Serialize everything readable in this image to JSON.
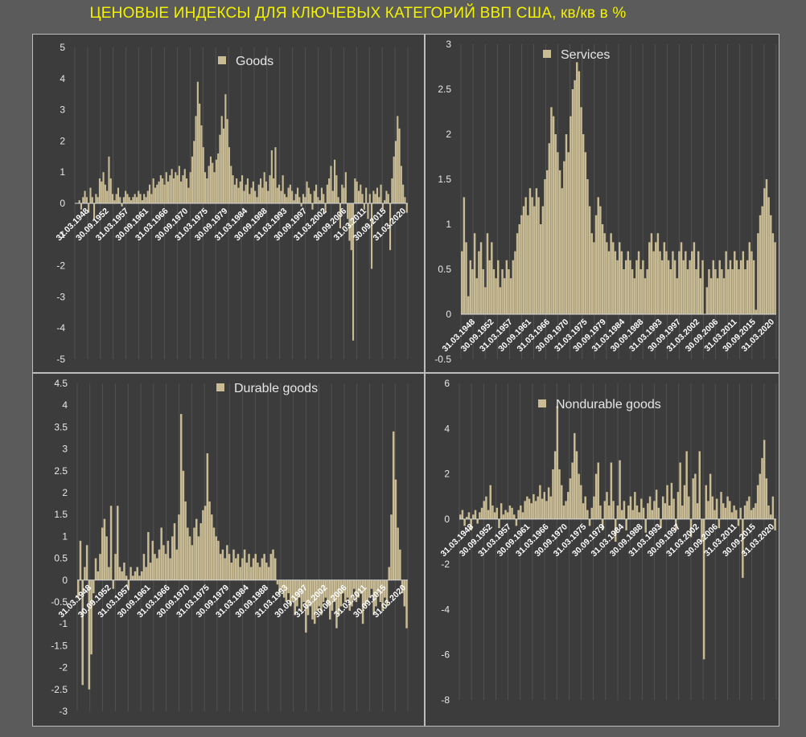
{
  "page_title": "ЦЕНОВЫЕ ИНДЕКСЫ ДЛЯ КЛЮЧЕВЫХ КАТЕГОРИЙ ВВП США, кв/кв в %",
  "colors": {
    "bar": "#c9bc94",
    "axis_text": "#e8e8e8",
    "grid": "#5a5a5a",
    "panel": "#3c3c3c",
    "title": "#f2f200"
  },
  "chart_data": [
    {
      "type": "bar",
      "legend": "Goods",
      "y_ticks": [
        "5",
        "4",
        "3",
        "2",
        "1",
        "0",
        "-1",
        "-2",
        "-3",
        "-4",
        "-5"
      ],
      "ylim": [
        -5,
        5
      ],
      "x_ticks": [
        "31.03.1948",
        "30.09.1952",
        "31.03.1957",
        "30.09.1961",
        "31.03.1966",
        "30.09.1970",
        "31.03.1975",
        "30.09.1979",
        "31.03.1984",
        "30.09.1988",
        "31.03.1993",
        "30.09.1997",
        "31.03.2002",
        "30.09.2006",
        "31.03.2011",
        "30.09.2015",
        "31.03.2020"
      ],
      "values": [
        0,
        0,
        0.1,
        -0.2,
        0.2,
        0.4,
        0.2,
        -0.3,
        0.5,
        0.2,
        -0.5,
        0.3,
        0.2,
        0.8,
        0.7,
        1.0,
        0.6,
        0.4,
        1.5,
        0.8,
        0.3,
        0.1,
        0.3,
        0.5,
        0.2,
        -0.1,
        0.2,
        0.4,
        0.3,
        0.2,
        0.1,
        0.2,
        0.3,
        0.2,
        0.4,
        0.3,
        0.1,
        0.3,
        0.2,
        0.4,
        0.6,
        0.3,
        0.8,
        0.5,
        0.6,
        0.7,
        0.9,
        0.8,
        0.6,
        1.0,
        0.7,
        0.9,
        1.1,
        0.8,
        1.0,
        0.9,
        1.2,
        0.7,
        0.9,
        1.1,
        0.8,
        0.5,
        1.0,
        1.5,
        2.0,
        2.8,
        3.9,
        3.2,
        2.5,
        1.8,
        1.0,
        0.8,
        1.2,
        1.5,
        1.3,
        1.0,
        1.4,
        1.6,
        2.2,
        2.8,
        2.4,
        3.5,
        2.7,
        1.8,
        1.2,
        0.9,
        0.6,
        0.8,
        0.5,
        0.7,
        0.9,
        0.4,
        0.6,
        0.8,
        0.3,
        0.5,
        0.7,
        0.4,
        0.2,
        0.6,
        0.8,
        0.5,
        1.0,
        0.7,
        0.4,
        0.9,
        1.7,
        0.8,
        1.8,
        0.5,
        0.6,
        0.4,
        0.9,
        0.3,
        0.2,
        0.5,
        0.6,
        0.4,
        0.1,
        0.3,
        0.5,
        0.2,
        -0.1,
        0.3,
        0.2,
        0.7,
        0.5,
        0.3,
        -0.2,
        0.4,
        0.6,
        0.2,
        0.1,
        0.5,
        0.3,
        -0.3,
        0.6,
        0.8,
        1.2,
        0.4,
        1.4,
        0.9,
        0.2,
        -0.8,
        0.6,
        0.5,
        1.0,
        -0.5,
        -1.2,
        -1.5,
        -4.4,
        0.8,
        0.7,
        0.4,
        0.6,
        0.3,
        -0.2,
        0.5,
        -0.5,
        0.3,
        -2.1,
        0.4,
        0.3,
        0.5,
        0.2,
        0.6,
        -0.2,
        0.1,
        0.4,
        0.3,
        -1.5,
        0.8,
        1.5,
        2.0,
        2.8,
        2.4,
        1.2,
        0.6,
        0.2,
        -0.3
      ]
    },
    {
      "type": "bar",
      "legend": "Services",
      "y_ticks": [
        "3",
        "2.5",
        "2",
        "1.5",
        "1",
        "0.5",
        "0",
        "-0.5"
      ],
      "ylim": [
        -0.5,
        3
      ],
      "x_ticks": [
        "31.03.1948",
        "30.09.1952",
        "31.03.1957",
        "30.09.1961",
        "31.03.1966",
        "30.09.1970",
        "31.03.1975",
        "30.09.1979",
        "31.03.1984",
        "30.09.1988",
        "31.03.1993",
        "30.09.1997",
        "31.03.2002",
        "30.09.2006",
        "31.03.2011",
        "30.09.2015",
        "31.03.2020"
      ],
      "values": [
        0.7,
        1.3,
        0.8,
        0.2,
        0.6,
        0.5,
        0.9,
        0.4,
        0.7,
        0.8,
        0.5,
        0.3,
        0.9,
        0.6,
        0.8,
        0.5,
        0.4,
        0.6,
        0.3,
        0.5,
        0.4,
        0.6,
        0.5,
        0.4,
        0.6,
        0.7,
        0.9,
        1.0,
        1.1,
        1.2,
        1.3,
        1.1,
        1.4,
        1.3,
        1.2,
        1.4,
        1.3,
        1.0,
        1.2,
        1.5,
        1.6,
        1.9,
        2.3,
        2.2,
        2.0,
        1.8,
        1.6,
        1.4,
        1.7,
        2.0,
        1.8,
        2.2,
        2.5,
        2.6,
        2.8,
        2.7,
        2.3,
        2.0,
        1.8,
        1.5,
        1.2,
        0.9,
        0.8,
        1.1,
        1.3,
        1.2,
        1.0,
        0.9,
        0.8,
        0.7,
        0.9,
        0.8,
        0.7,
        0.6,
        0.8,
        0.7,
        0.5,
        0.6,
        0.7,
        0.6,
        0.5,
        0.4,
        0.6,
        0.7,
        0.5,
        0.6,
        0.4,
        0.5,
        0.8,
        0.9,
        0.7,
        0.8,
        0.9,
        0.7,
        0.6,
        0.8,
        0.7,
        0.6,
        0.5,
        0.7,
        0.6,
        0.4,
        0.7,
        0.8,
        0.6,
        0.7,
        0.5,
        0.6,
        0.7,
        0.8,
        0.5,
        0.7,
        0.4,
        0.6,
        0.0,
        0.3,
        0.5,
        0.4,
        0.6,
        0.5,
        0.4,
        0.6,
        0.5,
        0.4,
        0.7,
        0.5,
        0.6,
        0.5,
        0.7,
        0.6,
        0.5,
        0.6,
        0.7,
        0.5,
        0.6,
        0.8,
        0.7,
        0.6,
        0.05,
        0.9,
        1.1,
        1.2,
        1.4,
        1.5,
        1.3,
        1.1,
        0.9,
        0.8
      ]
    },
    {
      "type": "bar",
      "legend": "Durable goods",
      "y_ticks": [
        "4.5",
        "4",
        "3.5",
        "3",
        "2.5",
        "2",
        "1.5",
        "1",
        "0.5",
        "0",
        "-0.5",
        "-1",
        "-1.5",
        "-2",
        "-2.5",
        "-3"
      ],
      "ylim": [
        -3,
        4.5
      ],
      "x_ticks": [
        "31.03.1948",
        "30.09.1952",
        "31.03.1957",
        "30.09.1961",
        "31.03.1966",
        "30.09.1970",
        "31.03.1975",
        "30.09.1979",
        "31.03.1984",
        "30.09.1988",
        "31.03.1993",
        "30.09.1997",
        "31.03.2002",
        "30.09.2006",
        "31.03.2011",
        "30.09.2015",
        "31.03.2020"
      ],
      "values": [
        -0.4,
        0.9,
        -2.4,
        0.3,
        0.8,
        -2.5,
        -1.7,
        -0.3,
        0.5,
        0.2,
        0.6,
        1.2,
        1.4,
        1.0,
        0.3,
        1.7,
        -0.2,
        0.6,
        1.7,
        0.3,
        0.2,
        0.4,
        0.1,
        -0.2,
        0.3,
        0.1,
        0.2,
        0.3,
        0.1,
        0.2,
        0.6,
        0.3,
        1.1,
        0.4,
        0.9,
        0.6,
        0.5,
        0.7,
        1.2,
        0.8,
        0.6,
        0.9,
        0.5,
        1.0,
        1.3,
        0.7,
        1.5,
        3.8,
        2.5,
        1.8,
        1.2,
        1.0,
        0.8,
        1.2,
        1.4,
        1.0,
        1.3,
        1.6,
        1.7,
        2.9,
        1.8,
        1.5,
        1.2,
        1.0,
        0.9,
        0.6,
        0.7,
        0.5,
        0.8,
        0.6,
        0.4,
        0.7,
        0.5,
        0.6,
        0.3,
        0.5,
        0.7,
        0.4,
        0.6,
        0.3,
        0.5,
        0.6,
        0.4,
        0.3,
        0.5,
        0.6,
        0.4,
        0.3,
        0.6,
        0.7,
        0.5,
        -0.1,
        -0.3,
        -0.2,
        -0.4,
        -0.5,
        -0.3,
        -0.6,
        -0.5,
        -0.8,
        -0.6,
        -0.4,
        -0.7,
        -0.5,
        -1.2,
        -0.8,
        -0.6,
        -0.9,
        -1.0,
        -0.7,
        -0.6,
        -0.8,
        -0.5,
        -0.4,
        -0.6,
        -0.9,
        -0.7,
        -0.5,
        -1.1,
        -0.8,
        -0.6,
        -0.3,
        -0.5,
        -0.4,
        -0.7,
        -0.6,
        -0.2,
        -0.5,
        -0.4,
        -0.3,
        -1.0,
        -0.6,
        -0.5,
        -0.4,
        -0.2,
        -0.8,
        -0.6,
        -0.3,
        -0.5,
        -0.7,
        -0.4,
        -0.6,
        0.3,
        1.5,
        3.4,
        2.3,
        1.2,
        0.7,
        -0.3,
        -0.6,
        -1.1
      ]
    },
    {
      "type": "bar",
      "legend": "Nondurable goods",
      "y_ticks": [
        "6",
        "4",
        "2",
        "0",
        "-2",
        "-4",
        "-6",
        "-8"
      ],
      "ylim": [
        -8,
        6
      ],
      "x_ticks": [
        "31.03.1948",
        "30.09.1952",
        "31.03.1957",
        "30.09.1961",
        "31.03.1966",
        "30.09.1970",
        "31.03.1975",
        "30.09.1979",
        "31.03.1984",
        "30.09.1988",
        "31.03.1993",
        "30.09.1997",
        "31.03.2002",
        "30.09.2006",
        "31.03.2011",
        "30.09.2015",
        "31.03.2020"
      ],
      "values": [
        0.2,
        0.4,
        -0.3,
        0.1,
        0.3,
        -0.5,
        0.2,
        0.4,
        -0.2,
        0.3,
        0.5,
        0.8,
        1.0,
        0.4,
        1.5,
        0.6,
        0.3,
        0.5,
        -0.4,
        0.7,
        0.2,
        0.4,
        0.3,
        0.6,
        0.5,
        0.2,
        -0.3,
        0.4,
        0.6,
        0.3,
        0.8,
        1.0,
        0.9,
        0.7,
        1.1,
        0.8,
        1.0,
        1.5,
        0.9,
        1.2,
        0.8,
        1.4,
        1.0,
        2.2,
        3.0,
        5.0,
        2.2,
        1.5,
        0.6,
        0.8,
        1.2,
        1.8,
        2.5,
        3.8,
        3.0,
        2.0,
        1.5,
        0.7,
        1.0,
        0.4,
        -0.3,
        0.5,
        1.0,
        2.0,
        2.5,
        0.6,
        -0.5,
        0.8,
        1.2,
        0.6,
        2.5,
        0.8,
        -1.0,
        0.6,
        2.6,
        0.4,
        0.8,
        -0.5,
        0.6,
        1.0,
        0.4,
        1.2,
        0.6,
        0.3,
        0.9,
        0.5,
        -0.6,
        0.7,
        1.0,
        0.4,
        0.8,
        1.3,
        0.5,
        -0.4,
        1.0,
        0.7,
        1.5,
        0.6,
        1.6,
        0.9,
        -0.5,
        1.2,
        2.5,
        0.6,
        1.5,
        3.0,
        1.0,
        -0.8,
        1.8,
        2.0,
        0.7,
        3.0,
        -1.0,
        -6.2,
        1.5,
        0.8,
        2.0,
        1.0,
        0.4,
        0.9,
        -0.4,
        1.2,
        0.7,
        0.5,
        1.0,
        0.8,
        0.3,
        0.6,
        0.4,
        -0.3,
        0.5,
        -2.6,
        0.6,
        0.8,
        1.0,
        0.4,
        0.5,
        0.7,
        1.5,
        2.0,
        2.7,
        3.5,
        1.8,
        0.6,
        0.2,
        1.0,
        -0.5
      ]
    }
  ]
}
